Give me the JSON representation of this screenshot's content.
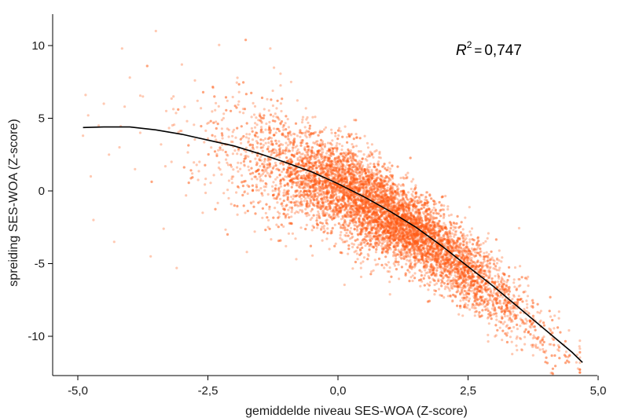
{
  "chart_data": {
    "type": "scatter",
    "xlabel": "gemiddelde niveau SES-WOA (Z-score)",
    "ylabel": "spreiding SES-WOA (Z-score)",
    "xlim": [
      -5.0,
      5.0
    ],
    "ylim": [
      -13.0,
      12.0
    ],
    "x_ticks": [
      -5.0,
      -2.5,
      0.0,
      2.5,
      5.0
    ],
    "x_tick_labels": [
      "-5,0",
      "-2,5",
      "0,0",
      "2,5",
      "5,0"
    ],
    "y_ticks": [
      10,
      5,
      0,
      -5,
      -10
    ],
    "y_tick_labels": [
      "10",
      "5",
      "0",
      "-5",
      "-10"
    ],
    "grid": false,
    "point_color": "#ff5a14",
    "fit_color": "#000000",
    "annotation": {
      "symbol": "R",
      "superscript": "2",
      "operator": "=",
      "value": "0,747"
    },
    "fit_curve": {
      "x": [
        -4.9,
        -4.5,
        -4.0,
        -3.5,
        -3.0,
        -2.5,
        -2.0,
        -1.5,
        -1.0,
        -0.5,
        0.0,
        0.5,
        1.0,
        1.5,
        2.0,
        2.5,
        3.0,
        3.5,
        4.0,
        4.5,
        4.7
      ],
      "y": [
        4.36,
        4.4,
        4.4,
        4.2,
        3.9,
        3.5,
        3.1,
        2.55,
        1.95,
        1.3,
        0.5,
        -0.4,
        -1.4,
        -2.5,
        -3.8,
        -5.2,
        -6.6,
        -8.1,
        -9.6,
        -11.1,
        -11.8
      ]
    },
    "points": [
      [
        -4.9,
        3.8
      ],
      [
        -4.8,
        5.2
      ],
      [
        -4.75,
        1.0
      ],
      [
        -4.7,
        -2.0
      ],
      [
        -4.6,
        4.5
      ],
      [
        -4.5,
        6.0
      ],
      [
        -4.4,
        2.5
      ],
      [
        -4.3,
        -3.5
      ],
      [
        -4.2,
        3.0
      ],
      [
        -4.1,
        5.8
      ],
      [
        -4.0,
        7.8
      ],
      [
        -3.9,
        1.5
      ],
      [
        -3.8,
        4.0
      ],
      [
        -3.75,
        6.5
      ],
      [
        -3.6,
        -4.5
      ],
      [
        -3.5,
        11.0
      ],
      [
        -3.4,
        3.2
      ],
      [
        -3.3,
        5.5
      ],
      [
        -3.2,
        2.0
      ],
      [
        -3.1,
        -5.3
      ],
      [
        -3.0,
        8.7
      ],
      [
        -2.9,
        4.8
      ],
      [
        -2.8,
        1.2
      ],
      [
        -2.7,
        6.2
      ],
      [
        -2.6,
        -1.5
      ],
      [
        -2.5,
        3.6
      ],
      [
        -2.4,
        7.1
      ],
      [
        -2.3,
        2.8
      ],
      [
        -2.2,
        5.0
      ],
      [
        -2.1,
        -0.5
      ],
      [
        -2.0,
        4.2
      ],
      [
        -1.9,
        6.8
      ],
      [
        -1.8,
        1.8
      ],
      [
        -1.7,
        3.9
      ],
      [
        -1.6,
        -2.8
      ],
      [
        -1.5,
        5.3
      ],
      [
        -1.4,
        2.2
      ],
      [
        -1.3,
        9.8
      ],
      [
        -1.2,
        0.8
      ],
      [
        -1.1,
        4.6
      ],
      [
        -1.0,
        -3.8
      ],
      [
        -4.85,
        6.6
      ],
      [
        -4.15,
        9.8
      ],
      [
        -3.35,
        -2.6
      ],
      [
        -2.75,
        7.6
      ],
      [
        -1.75,
        -4.2
      ],
      [
        -0.9,
        7.5
      ],
      [
        -0.8,
        -4.7
      ]
    ]
  }
}
